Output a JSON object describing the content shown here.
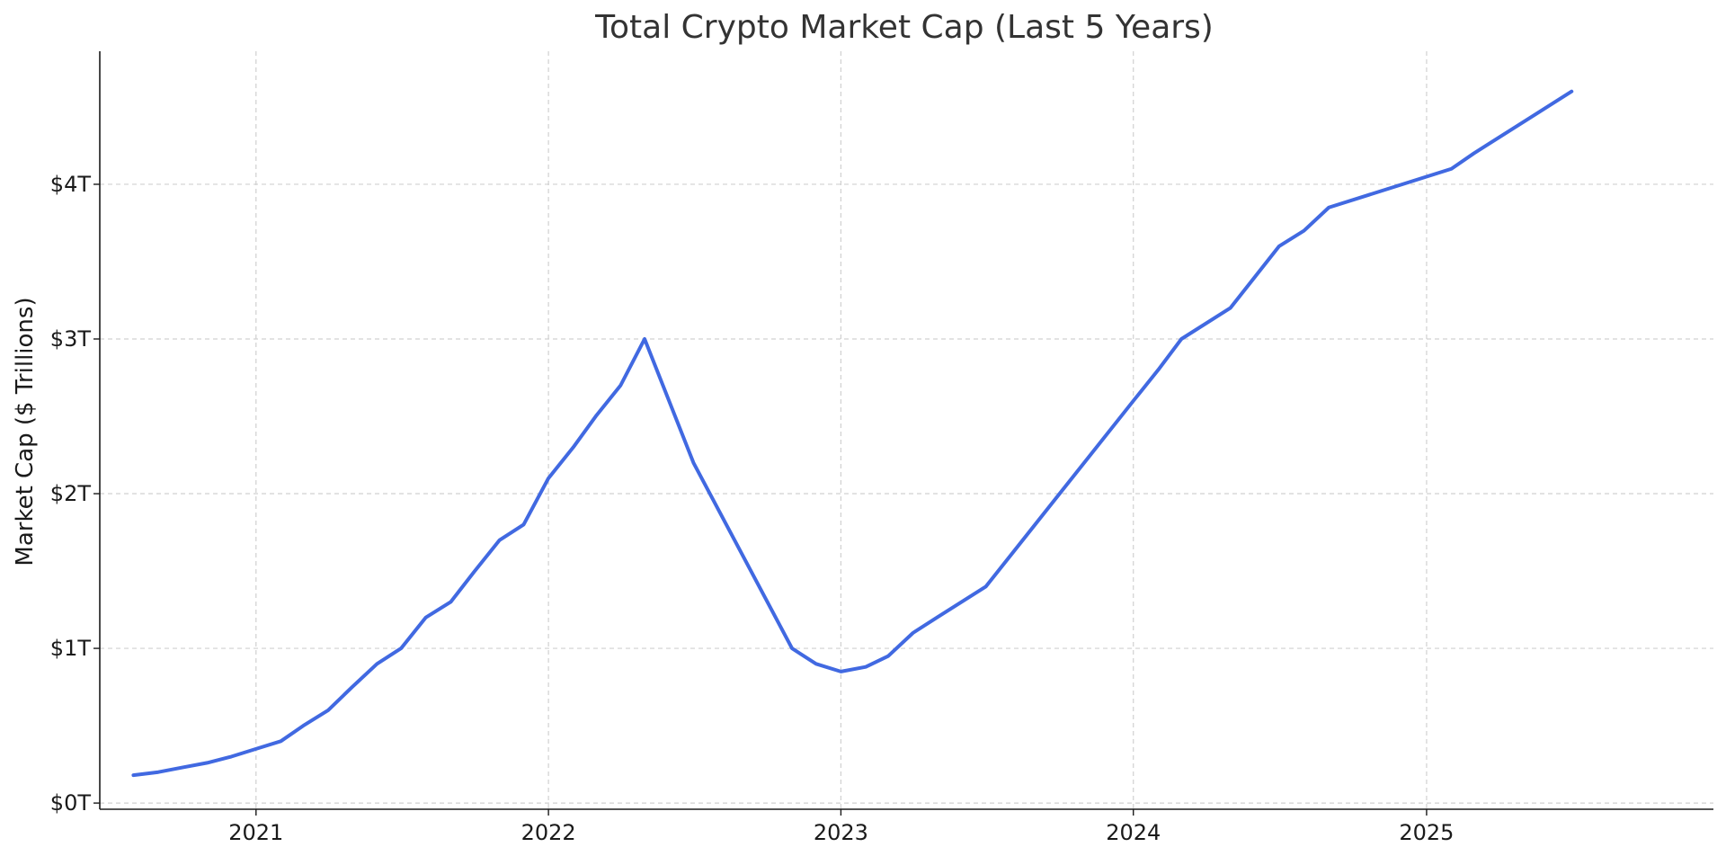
{
  "chart_data": {
    "type": "line",
    "title": "Total Crypto Market Cap (Last 5 Years)",
    "xlabel": "",
    "ylabel": "Market Cap ($ Trillions)",
    "x_ticks": [
      "2021",
      "2022",
      "2023",
      "2024",
      "2025"
    ],
    "y_ticks": [
      "$0T",
      "$1T",
      "$2T",
      "$3T",
      "$4T"
    ],
    "ylim": [
      -0.04,
      4.86
    ],
    "xlim": [
      "2020-06-20",
      "2025-12-25"
    ],
    "grid": true,
    "line_color": "#4169e1",
    "series": [
      {
        "x": [
          "2020-08-01",
          "2020-09-01",
          "2020-10-01",
          "2020-11-01",
          "2020-12-01",
          "2021-01-01",
          "2021-02-01",
          "2021-03-01",
          "2021-04-01",
          "2021-05-01",
          "2021-06-01",
          "2021-07-01",
          "2021-08-01",
          "2021-09-01",
          "2021-10-01",
          "2021-11-01",
          "2021-12-01",
          "2022-01-01",
          "2022-02-01",
          "2022-03-01",
          "2022-04-01",
          "2022-05-01",
          "2022-07-01",
          "2022-11-01",
          "2022-12-01",
          "2023-01-01",
          "2023-02-01",
          "2023-03-01",
          "2023-04-01",
          "2023-05-01",
          "2023-07-01",
          "2023-10-01",
          "2024-01-01",
          "2024-02-01",
          "2024-03-01",
          "2024-05-01",
          "2024-07-01",
          "2024-08-01",
          "2024-09-01",
          "2025-02-01",
          "2025-03-01",
          "2025-07-01"
        ],
        "values": [
          0.18,
          0.2,
          0.23,
          0.26,
          0.3,
          0.35,
          0.4,
          0.5,
          0.6,
          0.75,
          0.9,
          1.0,
          1.2,
          1.3,
          1.5,
          1.7,
          1.8,
          2.1,
          2.3,
          2.5,
          2.7,
          3.0,
          2.2,
          1.0,
          0.9,
          0.85,
          0.88,
          0.95,
          1.1,
          1.2,
          1.4,
          2.0,
          2.6,
          2.8,
          3.0,
          3.2,
          3.6,
          3.7,
          3.85,
          4.1,
          4.2,
          4.6
        ]
      }
    ]
  }
}
